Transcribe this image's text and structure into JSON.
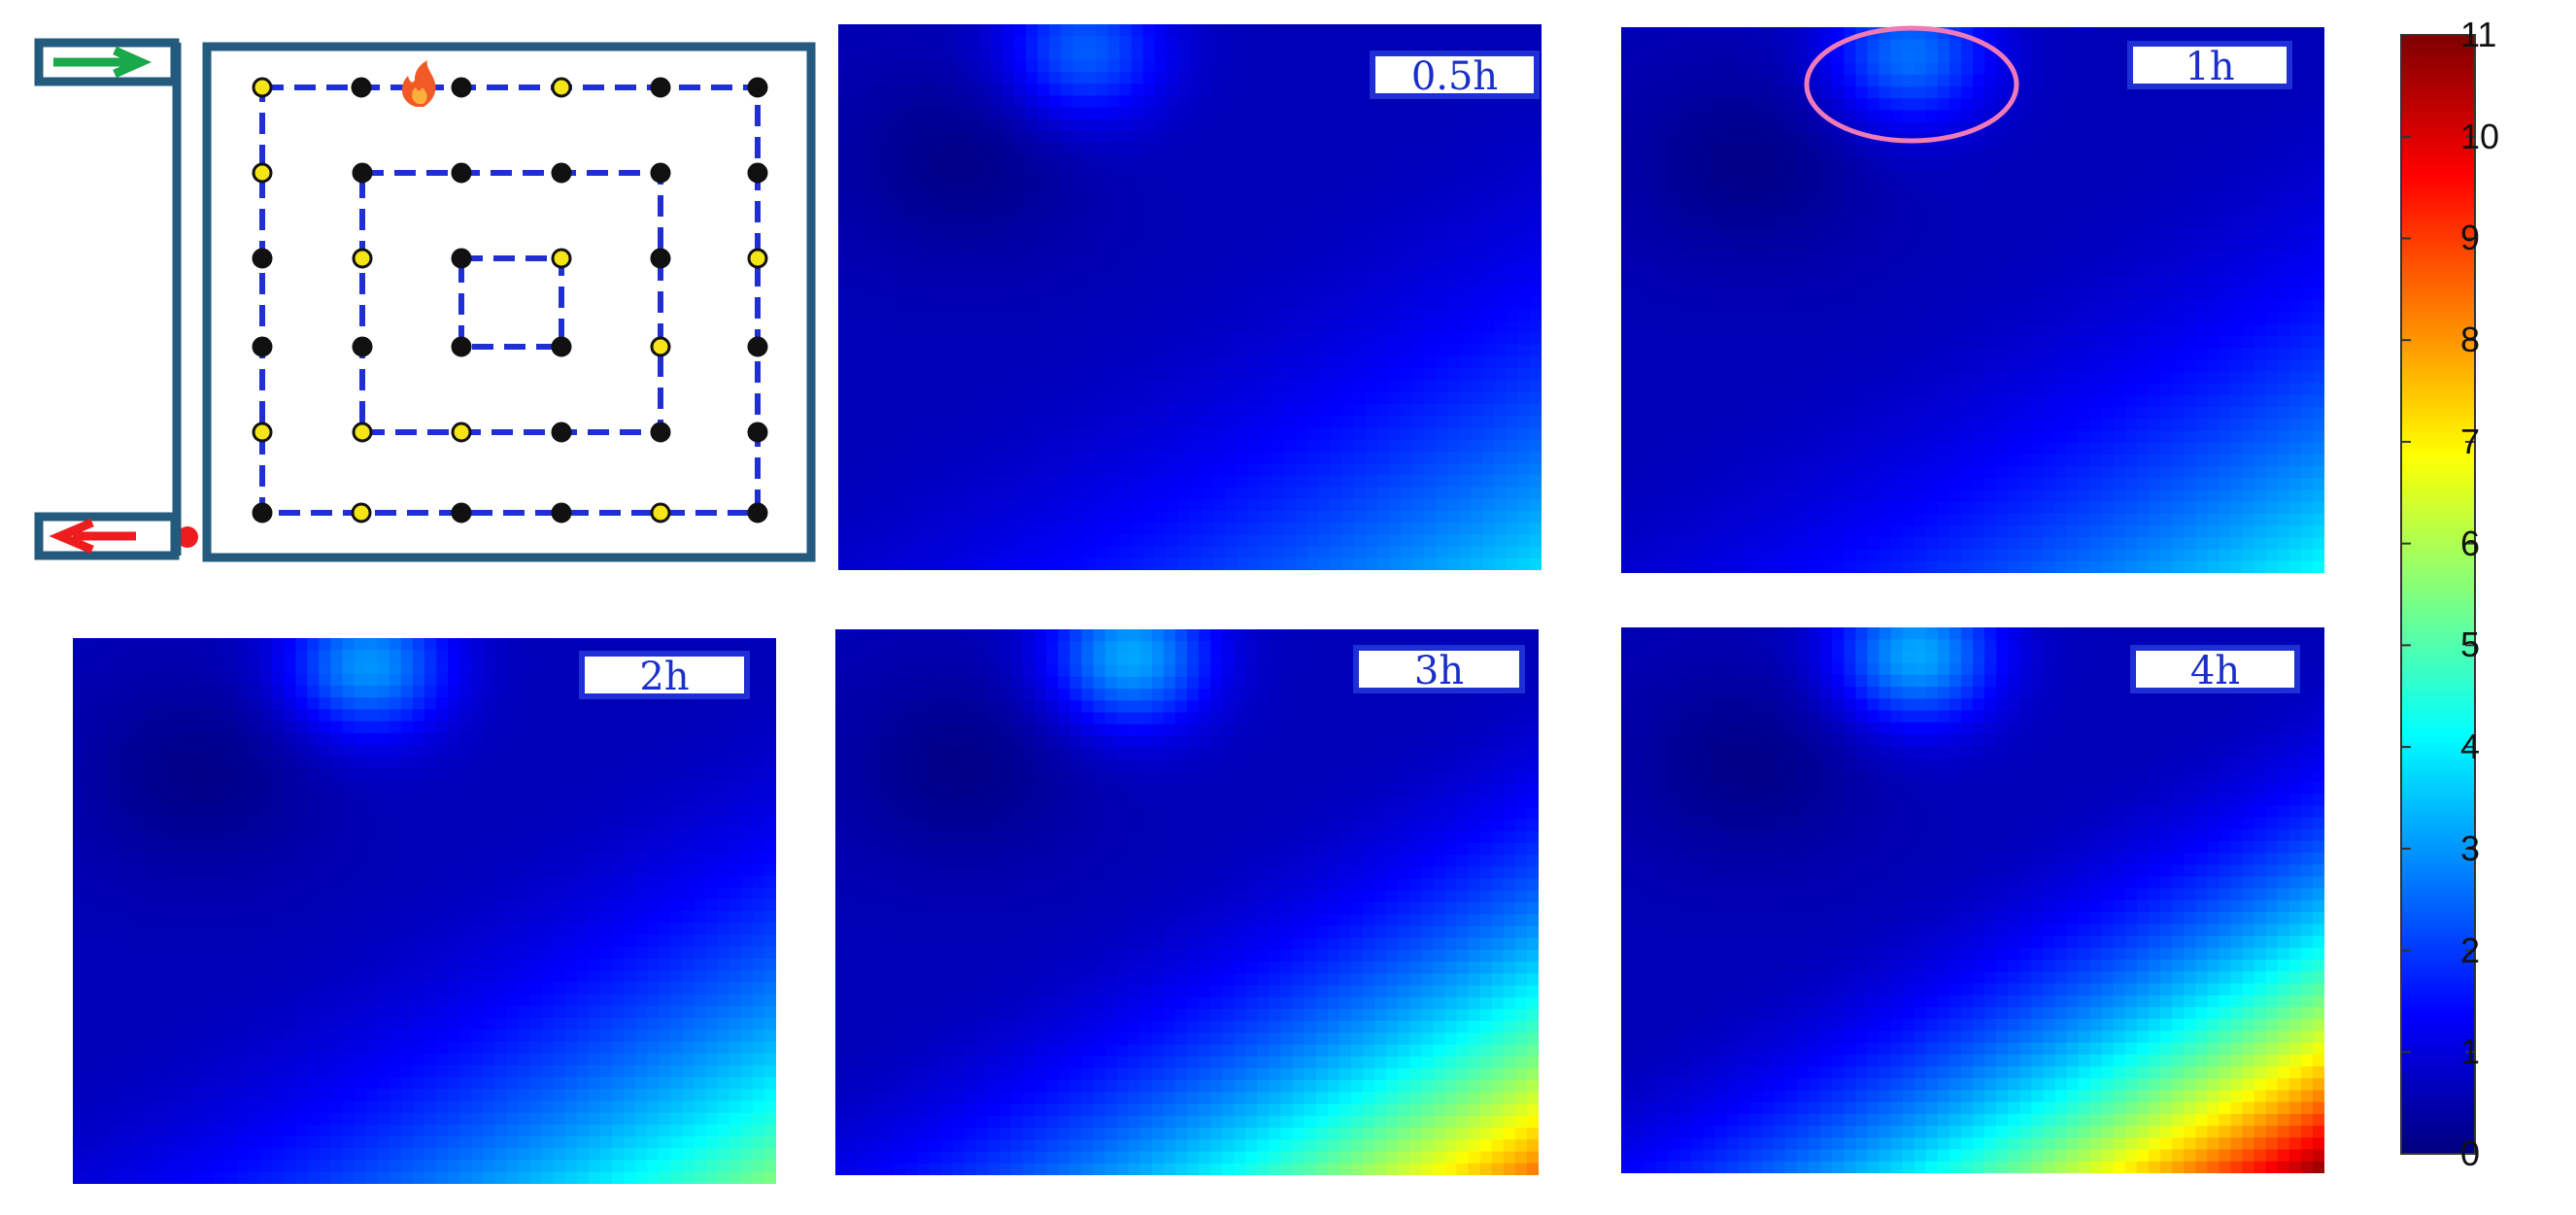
{
  "chart_data": {
    "type": "heatmap",
    "layout_plan": {
      "description": "Top-left schematic of a square chamber with three concentric dashed-blue sensor loops, sensor points (black/yellow), a fire marker near the top, an inlet (green arrow) top-left and outlet (red arrow) bottom-left; followed by five contour heatmaps at increasing times."
    },
    "panels": [
      {
        "time_label": "0.5h",
        "blobs": [
          {
            "cx": 0.35,
            "cy": 0.05,
            "value": 3.0
          },
          {
            "cx": 1.0,
            "cy": 1.0,
            "value": 3.8
          }
        ]
      },
      {
        "time_label": "1h",
        "blobs": [
          {
            "cx": 0.41,
            "cy": 0.05,
            "value": 3.2
          },
          {
            "cx": 1.0,
            "cy": 1.0,
            "value": 4.2
          }
        ],
        "highlight": true
      },
      {
        "time_label": "2h",
        "blobs": [
          {
            "cx": 0.42,
            "cy": 0.05,
            "value": 3.6
          },
          {
            "cx": 1.0,
            "cy": 1.0,
            "value": 5.6
          }
        ]
      },
      {
        "time_label": "3h",
        "blobs": [
          {
            "cx": 0.42,
            "cy": 0.05,
            "value": 3.8
          },
          {
            "cx": 1.0,
            "cy": 1.0,
            "value": 8.5
          }
        ]
      },
      {
        "time_label": "4h",
        "blobs": [
          {
            "cx": 0.42,
            "cy": 0.05,
            "value": 3.8
          },
          {
            "cx": 1.0,
            "cy": 1.0,
            "value": 11.0
          }
        ]
      }
    ],
    "colorbar": {
      "min": 0,
      "max": 11,
      "ticks": [
        "0",
        "1",
        "2",
        "3",
        "4",
        "5",
        "6",
        "7",
        "8",
        "9",
        "10",
        "11"
      ],
      "colormap": [
        "#00007f",
        "#0000ff",
        "#007fff",
        "#00ffff",
        "#7fff7f",
        "#ffff00",
        "#ff7f00",
        "#ff0000",
        "#7f0000"
      ]
    },
    "legend": {
      "xlabel": "",
      "ylabel": ""
    }
  }
}
